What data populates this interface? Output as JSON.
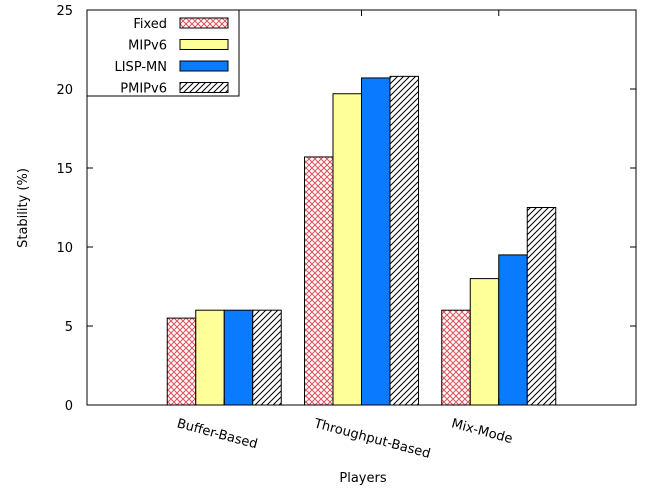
{
  "chart_data": {
    "type": "bar",
    "title": "",
    "xlabel": "Players",
    "ylabel": "Stability (%)",
    "ylim": [
      0,
      25
    ],
    "yticks": [
      "0",
      "5",
      "10",
      "15",
      "20",
      "25"
    ],
    "categories": [
      "Buffer-Based",
      "Throughput-Based",
      "Mix-Mode"
    ],
    "series": [
      {
        "name": "Fixed",
        "values": [
          5.5,
          15.7,
          6.0
        ],
        "color": "#e0505a",
        "pattern": "crosshatch"
      },
      {
        "name": "MIPv6",
        "values": [
          6.0,
          19.7,
          8.0
        ],
        "color": "#ffff99",
        "pattern": "solid"
      },
      {
        "name": "LISP-MN",
        "values": [
          6.0,
          20.7,
          9.5
        ],
        "color": "#0a7aff",
        "pattern": "solid"
      },
      {
        "name": "PMIPv6",
        "values": [
          6.0,
          20.8,
          12.5
        ],
        "color": "#000000",
        "pattern": "diagonal"
      }
    ],
    "legend_position": "top-left",
    "grid": false
  }
}
